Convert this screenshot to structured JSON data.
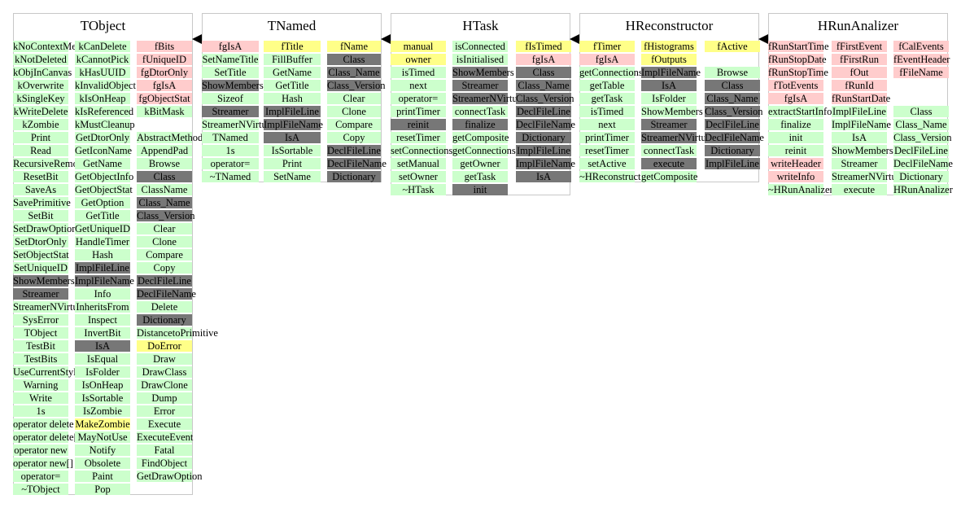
{
  "classes": [
    {
      "title": "TObject",
      "columns": [
        [
          [
            "kNoContextMenu",
            "m"
          ],
          [
            "kNotDeleted",
            "m"
          ],
          [
            "kObjInCanvas",
            "m"
          ],
          [
            "kOverwrite",
            "m"
          ],
          [
            "kSingleKey",
            "m"
          ],
          [
            "kWriteDelete",
            "m"
          ],
          [
            "kZombie",
            "m"
          ],
          [
            "Print",
            "m"
          ],
          [
            "Read",
            "m"
          ],
          [
            "RecursiveRemove",
            "m"
          ],
          [
            "ResetBit",
            "m"
          ],
          [
            "SaveAs",
            "m"
          ],
          [
            "SavePrimitive",
            "m"
          ],
          [
            "SetBit",
            "m"
          ],
          [
            "SetDrawOption",
            "m"
          ],
          [
            "SetDtorOnly",
            "m"
          ],
          [
            "SetObjectStat",
            "m"
          ],
          [
            "SetUniqueID",
            "m"
          ],
          [
            "ShowMembers",
            "i"
          ],
          [
            "Streamer",
            "i"
          ],
          [
            "StreamerNVirtual",
            "m"
          ],
          [
            "SysError",
            "m"
          ],
          [
            "TObject",
            "m"
          ],
          [
            "TestBit",
            "m"
          ],
          [
            "TestBits",
            "m"
          ],
          [
            "UseCurrentStyle",
            "m"
          ],
          [
            "Warning",
            "m"
          ],
          [
            "Write",
            "m"
          ],
          [
            "1s",
            "m"
          ],
          [
            "operator delete",
            "m"
          ],
          [
            "operator delete[]",
            "m"
          ],
          [
            "operator new",
            "m"
          ],
          [
            "operator new[]",
            "m"
          ],
          [
            "operator=",
            "m"
          ],
          [
            "~TObject",
            "m"
          ]
        ],
        [
          [
            "kCanDelete",
            "m"
          ],
          [
            "kCannotPick",
            "m"
          ],
          [
            "kHasUUID",
            "m"
          ],
          [
            "kInvalidObject",
            "m"
          ],
          [
            "kIsOnHeap",
            "m"
          ],
          [
            "kIsReferenced",
            "m"
          ],
          [
            "kMustCleanup",
            "m"
          ],
          [
            "GetDtorOnly",
            "m"
          ],
          [
            "GetIconName",
            "m"
          ],
          [
            "GetName",
            "m"
          ],
          [
            "GetObjectInfo",
            "m"
          ],
          [
            "GetObjectStat",
            "m"
          ],
          [
            "GetOption",
            "m"
          ],
          [
            "GetTitle",
            "m"
          ],
          [
            "GetUniqueID",
            "m"
          ],
          [
            "HandleTimer",
            "m"
          ],
          [
            "Hash",
            "m"
          ],
          [
            "ImplFileLine",
            "i"
          ],
          [
            "ImplFileName",
            "i"
          ],
          [
            "Info",
            "m"
          ],
          [
            "InheritsFrom",
            "m"
          ],
          [
            "Inspect",
            "m"
          ],
          [
            "InvertBit",
            "m"
          ],
          [
            "IsA",
            "i"
          ],
          [
            "IsEqual",
            "m"
          ],
          [
            "IsFolder",
            "m"
          ],
          [
            "IsOnHeap",
            "m"
          ],
          [
            "IsSortable",
            "m"
          ],
          [
            "IsZombie",
            "m"
          ],
          [
            "MakeZombie",
            "p"
          ],
          [
            "MayNotUse",
            "m"
          ],
          [
            "Notify",
            "m"
          ],
          [
            "Obsolete",
            "m"
          ],
          [
            "Paint",
            "m"
          ],
          [
            "Pop",
            "m"
          ]
        ],
        [
          [
            "fBits",
            "d"
          ],
          [
            "fUniqueID",
            "d"
          ],
          [
            "fgDtorOnly",
            "d"
          ],
          [
            "fgIsA",
            "d"
          ],
          [
            "fgObjectStat",
            "d"
          ],
          [
            "kBitMask",
            "m"
          ],
          null,
          [
            "AbstractMethod",
            "m"
          ],
          [
            "AppendPad",
            "m"
          ],
          [
            "Browse",
            "m"
          ],
          [
            "Class",
            "i"
          ],
          [
            "ClassName",
            "m"
          ],
          [
            "Class_Name",
            "i"
          ],
          [
            "Class_Version",
            "i"
          ],
          [
            "Clear",
            "m"
          ],
          [
            "Clone",
            "m"
          ],
          [
            "Compare",
            "m"
          ],
          [
            "Copy",
            "m"
          ],
          [
            "DeclFileLine",
            "i"
          ],
          [
            "DeclFileName",
            "i"
          ],
          [
            "Delete",
            "m"
          ],
          [
            "Dictionary",
            "i"
          ],
          [
            "DistancetoPrimitive",
            "m"
          ],
          [
            "DoError",
            "p"
          ],
          [
            "Draw",
            "m"
          ],
          [
            "DrawClass",
            "m"
          ],
          [
            "DrawClone",
            "m"
          ],
          [
            "Dump",
            "m"
          ],
          [
            "Error",
            "m"
          ],
          [
            "Execute",
            "m"
          ],
          [
            "ExecuteEvent",
            "m"
          ],
          [
            "Fatal",
            "m"
          ],
          [
            "FindObject",
            "m"
          ],
          [
            "GetDrawOption",
            "m"
          ]
        ]
      ]
    },
    {
      "title": "TNamed",
      "columns": [
        [
          [
            "fgIsA",
            "d"
          ],
          [
            "SetNameTitle",
            "m"
          ],
          [
            "SetTitle",
            "m"
          ],
          [
            "ShowMembers",
            "i"
          ],
          [
            "Sizeof",
            "m"
          ],
          [
            "Streamer",
            "i"
          ],
          [
            "StreamerNVirtual",
            "m"
          ],
          [
            "TNamed",
            "m"
          ],
          [
            "1s",
            "m"
          ],
          [
            "operator=",
            "m"
          ],
          [
            "~TNamed",
            "m"
          ]
        ],
        [
          [
            "fTitle",
            "p"
          ],
          [
            "FillBuffer",
            "m"
          ],
          [
            "GetName",
            "m"
          ],
          [
            "GetTitle",
            "m"
          ],
          [
            "Hash",
            "m"
          ],
          [
            "ImplFileLine",
            "i"
          ],
          [
            "ImplFileName",
            "i"
          ],
          [
            "IsA",
            "i"
          ],
          [
            "IsSortable",
            "m"
          ],
          [
            "Print",
            "m"
          ],
          [
            "SetName",
            "m"
          ]
        ],
        [
          [
            "fName",
            "p"
          ],
          [
            "Class",
            "i"
          ],
          [
            "Class_Name",
            "i"
          ],
          [
            "Class_Version",
            "i"
          ],
          [
            "Clear",
            "m"
          ],
          [
            "Clone",
            "m"
          ],
          [
            "Compare",
            "m"
          ],
          [
            "Copy",
            "m"
          ],
          [
            "DeclFileLine",
            "i"
          ],
          [
            "DeclFileName",
            "i"
          ],
          [
            "Dictionary",
            "i"
          ]
        ]
      ]
    },
    {
      "title": "HTask",
      "columns": [
        [
          [
            "manual",
            "p"
          ],
          [
            "owner",
            "p"
          ],
          [
            "isTimed",
            "m"
          ],
          [
            "next",
            "m"
          ],
          [
            "operator=",
            "m"
          ],
          [
            "printTimer",
            "m"
          ],
          [
            "reinit",
            "i"
          ],
          [
            "resetTimer",
            "m"
          ],
          [
            "setConnections",
            "m"
          ],
          [
            "setManual",
            "m"
          ],
          [
            "setOwner",
            "m"
          ],
          [
            "~HTask",
            "m"
          ]
        ],
        [
          [
            "isConnected",
            "m"
          ],
          [
            "isInitialised",
            "m"
          ],
          [
            "ShowMembers",
            "i"
          ],
          [
            "Streamer",
            "i"
          ],
          [
            "StreamerNVirtual",
            "i"
          ],
          [
            "connectTask",
            "m"
          ],
          [
            "finalize",
            "i"
          ],
          [
            "getComposite",
            "m"
          ],
          [
            "getConnections",
            "m"
          ],
          [
            "getOwner",
            "m"
          ],
          [
            "getTask",
            "m"
          ],
          [
            "init",
            "i"
          ]
        ],
        [
          [
            "fIsTimed",
            "p"
          ],
          [
            "fgIsA",
            "d"
          ],
          [
            "Class",
            "i"
          ],
          [
            "Class_Name",
            "i"
          ],
          [
            "Class_Version",
            "i"
          ],
          [
            "DeclFileLine",
            "i"
          ],
          [
            "DeclFileName",
            "i"
          ],
          [
            "Dictionary",
            "i"
          ],
          [
            "ImplFileLine",
            "i"
          ],
          [
            "ImplFileName",
            "i"
          ],
          [
            "IsA",
            "i"
          ]
        ]
      ]
    },
    {
      "title": "HReconstructor",
      "columns": [
        [
          [
            "fTimer",
            "p"
          ],
          [
            "fgIsA",
            "d"
          ],
          [
            "getConnections",
            "m"
          ],
          [
            "getTable",
            "m"
          ],
          [
            "getTask",
            "m"
          ],
          [
            "isTimed",
            "m"
          ],
          [
            "next",
            "m"
          ],
          [
            "printTimer",
            "m"
          ],
          [
            "resetTimer",
            "m"
          ],
          [
            "setActive",
            "m"
          ],
          [
            "~HReconstructor",
            "m"
          ]
        ],
        [
          [
            "fHistograms",
            "p"
          ],
          [
            "fOutputs",
            "p"
          ],
          [
            "ImplFileName",
            "i"
          ],
          [
            "IsA",
            "i"
          ],
          [
            "IsFolder",
            "m"
          ],
          [
            "ShowMembers",
            "m"
          ],
          [
            "Streamer",
            "i"
          ],
          [
            "StreamerNVirtual",
            "i"
          ],
          [
            "connectTask",
            "m"
          ],
          [
            "execute",
            "i"
          ],
          [
            "getComposite",
            "m"
          ]
        ],
        [
          [
            "fActive",
            "p"
          ],
          null,
          [
            "Browse",
            "m"
          ],
          [
            "Class",
            "i"
          ],
          [
            "Class_Name",
            "i"
          ],
          [
            "Class_Version",
            "i"
          ],
          [
            "DeclFileLine",
            "i"
          ],
          [
            "DeclFileName",
            "i"
          ],
          [
            "Dictionary",
            "i"
          ],
          [
            "ImplFileLine",
            "i"
          ]
        ]
      ]
    },
    {
      "title": "HRunAnalizer",
      "columns": [
        [
          [
            "fRunStartTime",
            "d"
          ],
          [
            "fRunStopDate",
            "d"
          ],
          [
            "fRunStopTime",
            "d"
          ],
          [
            "fTotEvents",
            "d"
          ],
          [
            "fgIsA",
            "d"
          ],
          [
            "extractStartInfo",
            "m"
          ],
          [
            "finalize",
            "m"
          ],
          [
            "init",
            "m"
          ],
          [
            "reinit",
            "m"
          ],
          [
            "writeHeader",
            "d"
          ],
          [
            "writeInfo",
            "d"
          ],
          [
            "~HRunAnalizer",
            "m"
          ]
        ],
        [
          [
            "fFirstEvent",
            "d"
          ],
          [
            "fFirstRun",
            "d"
          ],
          [
            "fOut",
            "d"
          ],
          [
            "fRunId",
            "d"
          ],
          [
            "fRunStartDate",
            "d"
          ],
          [
            "ImplFileLine",
            "m"
          ],
          [
            "ImplFileName",
            "m"
          ],
          [
            "IsA",
            "m"
          ],
          [
            "ShowMembers",
            "m"
          ],
          [
            "Streamer",
            "m"
          ],
          [
            "StreamerNVirtual",
            "m"
          ],
          [
            "execute",
            "m"
          ]
        ],
        [
          [
            "fCalEvents",
            "d"
          ],
          [
            "fEventHeader",
            "d"
          ],
          [
            "fFileName",
            "d"
          ],
          null,
          null,
          [
            "Class",
            "m"
          ],
          [
            "Class_Name",
            "m"
          ],
          [
            "Class_Version",
            "m"
          ],
          [
            "DeclFileLine",
            "m"
          ],
          [
            "DeclFileName",
            "m"
          ],
          [
            "Dictionary",
            "m"
          ],
          [
            "HRunAnalizer",
            "m"
          ]
        ]
      ]
    }
  ],
  "colors": {
    "method": "#ccffcc",
    "data_member": "#ffcccc",
    "pointer_member": "#ffff88",
    "inherited": "#777777",
    "frame_border": "#c8c8c8",
    "arrow": "#000000"
  }
}
